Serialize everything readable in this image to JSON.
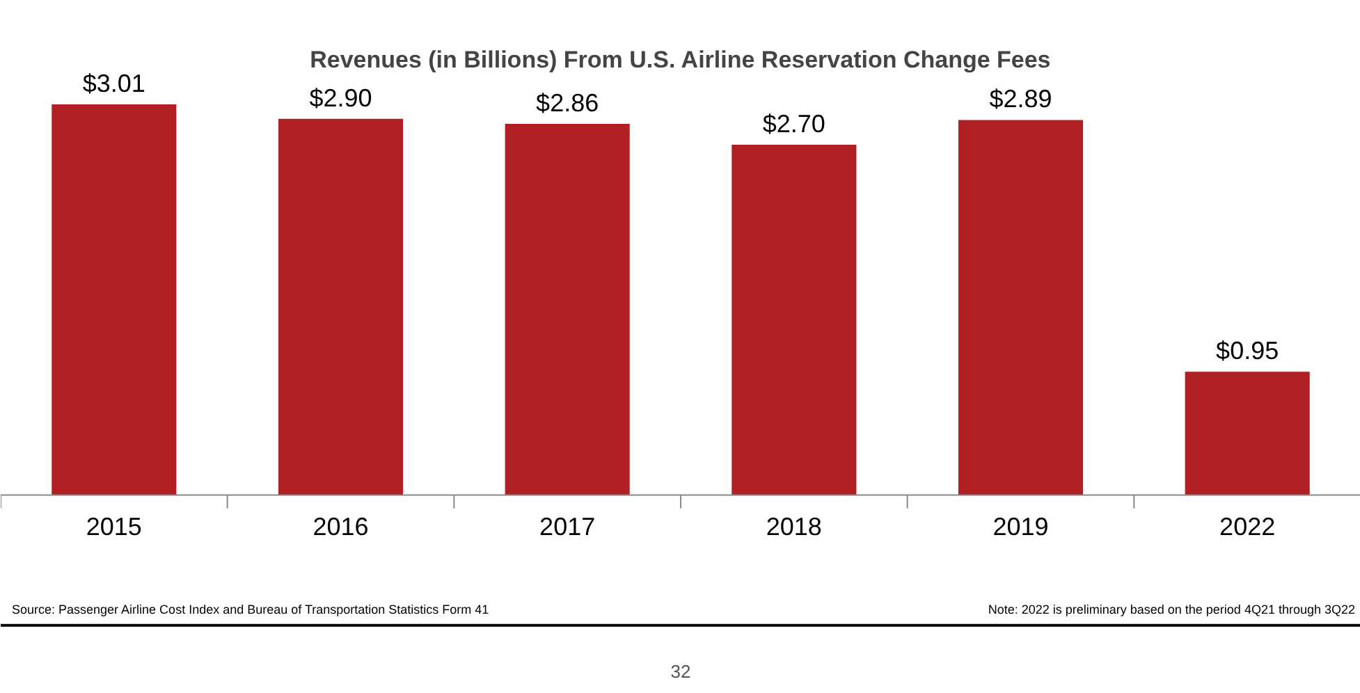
{
  "chart_data": {
    "type": "bar",
    "title": "Revenues (in Billions) From U.S. Airline Reservation Change Fees",
    "categories": [
      "2015",
      "2016",
      "2017",
      "2018",
      "2019",
      "2022"
    ],
    "values": [
      3.01,
      2.9,
      2.86,
      2.7,
      2.89,
      0.95
    ],
    "value_labels": [
      "$3.01",
      "$2.90",
      "$2.86",
      "$2.70",
      "$2.89",
      "$0.95"
    ],
    "color": "#b01f24",
    "tick_labels": "x",
    "annotations": [
      "Source: Passenger Airline Cost Index and Bureau of Transportation Statistics Form 41",
      "Note: 2022 is preliminary based on the period 4Q21 through 3Q22",
      "32"
    ]
  }
}
